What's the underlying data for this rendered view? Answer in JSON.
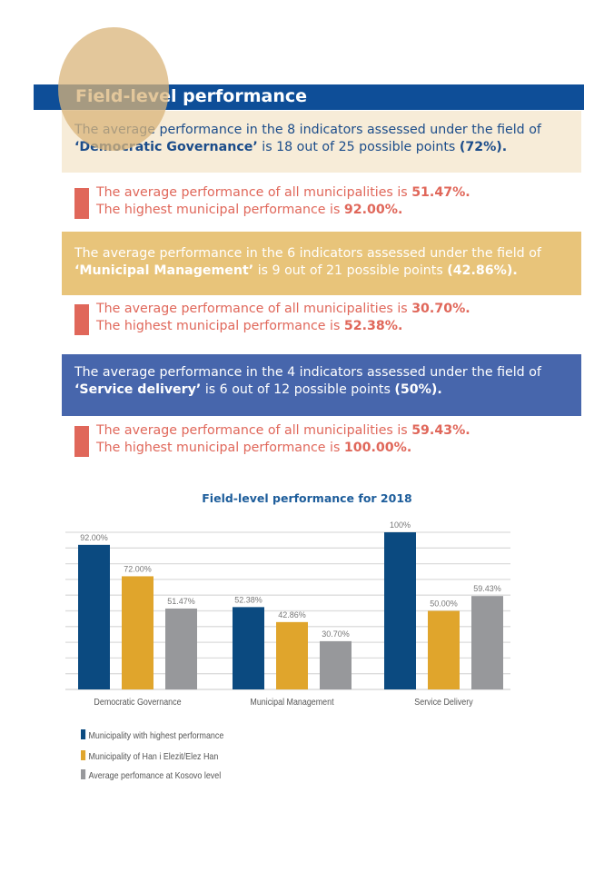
{
  "header": {
    "title": "Field-level performance"
  },
  "sections": [
    {
      "line1": "The average performance in the 8 indicators assessed under the field of",
      "field": "‘Democratic Governance’",
      "mid": " is 18 out of 25 possible points ",
      "pct": "(72%).",
      "avg_text": "The average performance of all municipalities is ",
      "avg": "51.47%.",
      "high_text": "The highest municipal performance is ",
      "high": "92.00%."
    },
    {
      "line1": "The average performance in the 6 indicators assessed under the field of",
      "field": "‘Municipal Management’",
      "mid": " is 9 out of 21 possible points ",
      "pct": "(42.86%).",
      "avg_text": "The average performance of all municipalities is ",
      "avg": "30.70%.",
      "high_text": "The highest municipal performance is ",
      "high": "52.38%."
    },
    {
      "line1": "The average performance in the 4 indicators assessed under the field of",
      "field": "‘Service delivery’",
      "mid": " is 6 out of 12 possible points ",
      "pct": "(50%).",
      "avg_text": "The average performance of all municipalities is ",
      "avg": "59.43%.",
      "high_text": "The highest municipal performance is ",
      "high": "100.00%."
    }
  ],
  "colors": {
    "header": "#0e4e98",
    "accent_red": "#e0675a",
    "gold": "#e8c47a",
    "blue_box": "#4766ac"
  },
  "chart_data": {
    "type": "bar",
    "title": "Field-level performance for 2018",
    "categories": [
      "Democratic Governance",
      "Municipal Management",
      "Service Delivery"
    ],
    "series": [
      {
        "name": "Municipality with highest performance",
        "color": "#0b4a80",
        "values": [
          92,
          52.38,
          100
        ],
        "labels": [
          "92.00%",
          "52.38%",
          "100%"
        ]
      },
      {
        "name": "Municipality of Han i Elezit/Elez Han",
        "color": "#e0a52c",
        "values": [
          72,
          42.86,
          50
        ],
        "labels": [
          "72.00%",
          "42.86%",
          "50.00%"
        ]
      },
      {
        "name": "Average perfomance at Kosovo level",
        "color": "#97989b",
        "values": [
          51.47,
          30.7,
          59.43
        ],
        "labels": [
          "51.47%",
          "30.70%",
          "59.43%"
        ]
      }
    ],
    "ylim": [
      0,
      100
    ],
    "grid": true,
    "legend": "bottom-left"
  }
}
